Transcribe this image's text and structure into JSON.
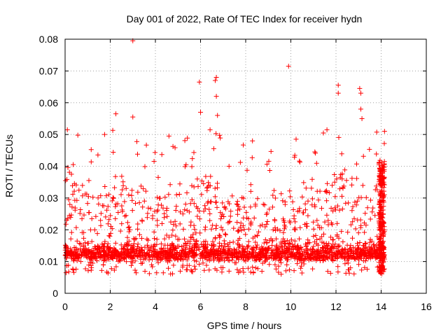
{
  "chart_data": {
    "type": "scatter",
    "title": "Day 001 of 2022, Rate Of TEC Index for receiver hydn",
    "xlabel": "GPS time / hours",
    "ylabel": "ROTI / TECUs",
    "xlim": [
      0,
      16
    ],
    "ylim": [
      0,
      0.08
    ],
    "xticks": [
      "0",
      "2",
      "4",
      "6",
      "8",
      "10",
      "12",
      "14",
      "16"
    ],
    "yticks": [
      "0",
      "0.01",
      "0.02",
      "0.03",
      "0.04",
      "0.05",
      "0.06",
      "0.07",
      "0.08"
    ],
    "grid": true,
    "marker": "+",
    "color": "#ff0000",
    "data_extent_hours": [
      0,
      14.15
    ],
    "typical_band": [
      0.005,
      0.025
    ],
    "outliers": [
      {
        "x": 3.0,
        "y": 0.0795
      },
      {
        "x": 9.9,
        "y": 0.0715
      },
      {
        "x": 6.7,
        "y": 0.068
      },
      {
        "x": 6.65,
        "y": 0.067
      },
      {
        "x": 5.95,
        "y": 0.0665
      },
      {
        "x": 12.1,
        "y": 0.0655
      },
      {
        "x": 13.05,
        "y": 0.0645
      },
      {
        "x": 12.1,
        "y": 0.063
      },
      {
        "x": 13.1,
        "y": 0.063
      },
      {
        "x": 6.7,
        "y": 0.062
      },
      {
        "x": 13.1,
        "y": 0.058
      },
      {
        "x": 6.0,
        "y": 0.057
      },
      {
        "x": 2.25,
        "y": 0.0565
      },
      {
        "x": 6.75,
        "y": 0.056
      },
      {
        "x": 3.0,
        "y": 0.0555
      },
      {
        "x": 13.15,
        "y": 0.055
      },
      {
        "x": 11.6,
        "y": 0.0515
      },
      {
        "x": 0.1,
        "y": 0.0515
      },
      {
        "x": 14.15,
        "y": 0.051
      },
      {
        "x": 1.75,
        "y": 0.05
      },
      {
        "x": 4.6,
        "y": 0.0495
      },
      {
        "x": 8.3,
        "y": 0.048
      }
    ]
  }
}
